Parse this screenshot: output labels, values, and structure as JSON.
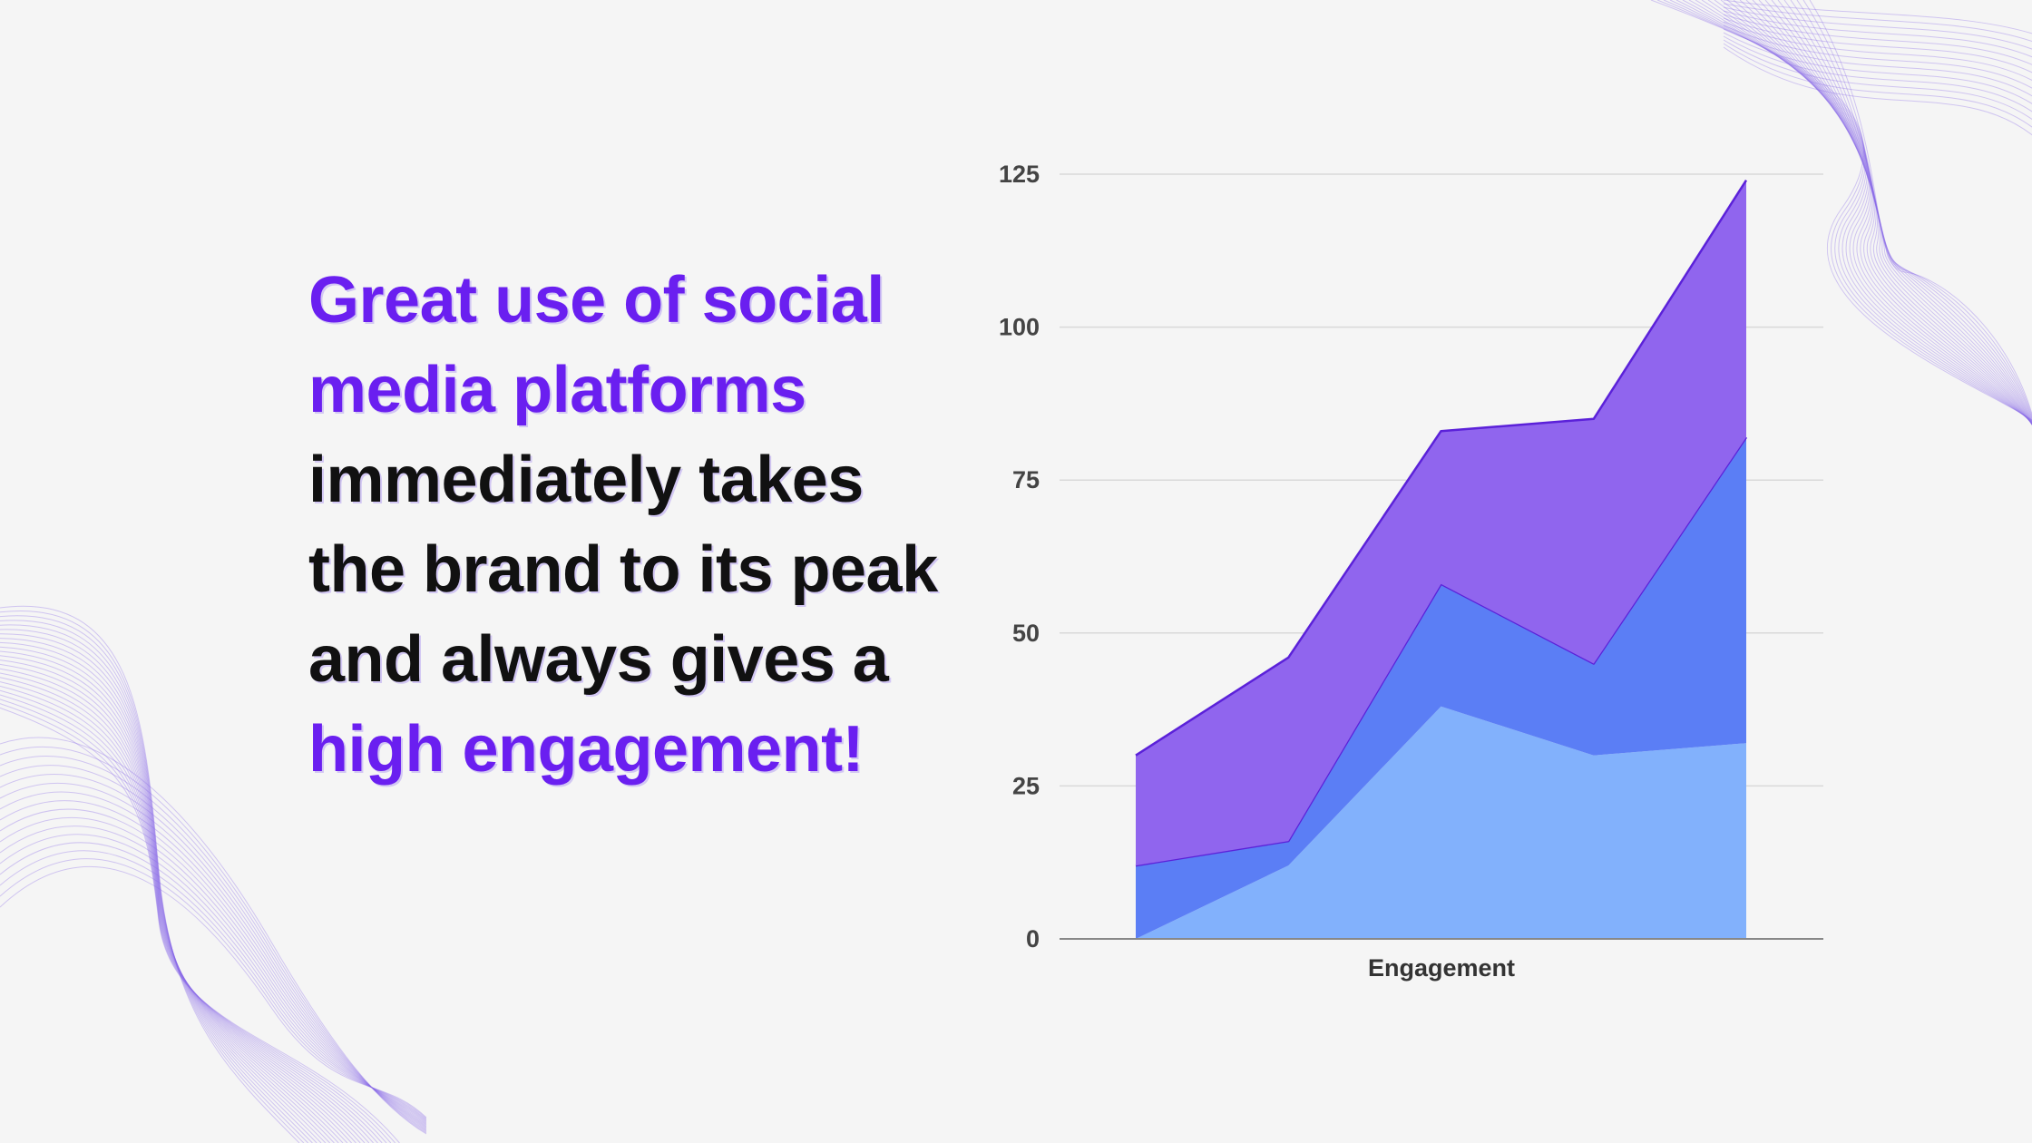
{
  "slide": {
    "headline_part1": "Great use of social media platforms",
    "headline_part2": "immediately takes the brand to its peak and always gives a",
    "headline_part3": "high engagement!"
  },
  "colors": {
    "accent": "#6a1ff0",
    "text": "#111111",
    "series_bottom": "#82b1fc",
    "series_middle": "#5b7ef5",
    "series_top": "#9065ee",
    "series_top_line": "#5b21d9"
  },
  "chart_data": {
    "type": "area",
    "stacked": true,
    "xlabel": "Engagement",
    "ylabel": "",
    "ylim": [
      0,
      125
    ],
    "yticks": [
      0,
      25,
      50,
      75,
      100,
      125
    ],
    "grid": true,
    "legend": "none",
    "x": [
      1,
      2,
      3,
      4,
      5
    ],
    "series": [
      {
        "values": [
          0,
          12,
          38,
          30,
          32
        ]
      },
      {
        "values": [
          12,
          4,
          20,
          15,
          50
        ]
      },
      {
        "values": [
          18,
          30,
          25,
          40,
          42
        ]
      }
    ]
  }
}
